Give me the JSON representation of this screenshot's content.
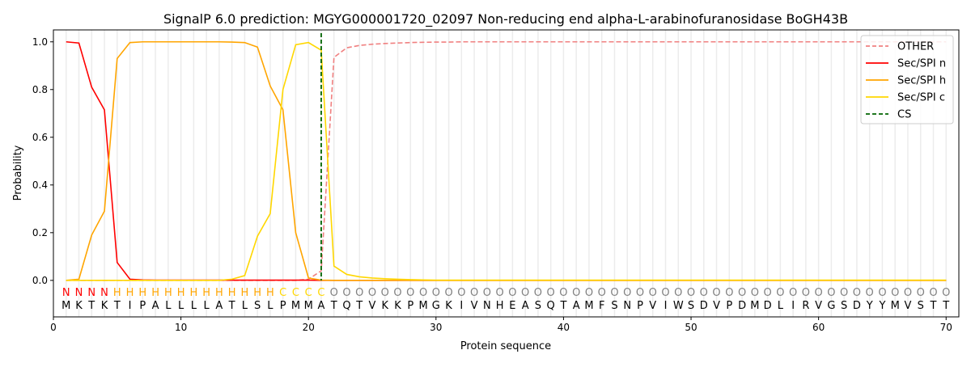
{
  "chart_data": {
    "type": "line",
    "title": "SignalP 6.0 prediction: MGYG000001720_02097 Non-reducing end alpha-L-arabinofuranosidase BoGH43B",
    "xlabel": "Protein sequence",
    "ylabel": "Probability",
    "xlim": [
      0,
      71
    ],
    "ylim": [
      -0.153,
      1.05
    ],
    "xticks": [
      0,
      10,
      20,
      30,
      40,
      50,
      60,
      70
    ],
    "yticks": [
      "0.0",
      "0.2",
      "0.4",
      "0.6",
      "0.8",
      "1.0"
    ],
    "grid": "vertical lines at each residue",
    "legend_position": "top-right",
    "sequence": [
      "M",
      "K",
      "T",
      "K",
      "T",
      "I",
      "P",
      "A",
      "L",
      "L",
      "L",
      "L",
      "A",
      "T",
      "L",
      "S",
      "L",
      "P",
      "M",
      "M",
      "A",
      "T",
      "Q",
      "T",
      "V",
      "K",
      "K",
      "P",
      "M",
      "G",
      "K",
      "I",
      "V",
      "N",
      "H",
      "E",
      "A",
      "S",
      "Q",
      "T",
      "A",
      "M",
      "F",
      "S",
      "N",
      "P",
      "V",
      "I",
      "W",
      "S",
      "D",
      "V",
      "P",
      "D",
      "M",
      "D",
      "L",
      "I",
      "R",
      "V",
      "G",
      "S",
      "D",
      "Y",
      "Y",
      "M",
      "V",
      "S",
      "T",
      "T"
    ],
    "labels": [
      "N",
      "N",
      "N",
      "N",
      "H",
      "H",
      "H",
      "H",
      "H",
      "H",
      "H",
      "H",
      "H",
      "H",
      "H",
      "H",
      "H",
      "C",
      "C",
      "C",
      "C",
      "O",
      "O",
      "O",
      "O",
      "O",
      "O",
      "O",
      "O",
      "O",
      "O",
      "O",
      "O",
      "O",
      "O",
      "O",
      "O",
      "O",
      "O",
      "O",
      "O",
      "O",
      "O",
      "O",
      "O",
      "O",
      "O",
      "O",
      "O",
      "O",
      "O",
      "O",
      "O",
      "O",
      "O",
      "O",
      "O",
      "O",
      "O",
      "O",
      "O",
      "O",
      "O",
      "O",
      "O",
      "O",
      "O",
      "O",
      "O",
      "O"
    ],
    "label_colors": {
      "N": "#ff0000",
      "H": "#ffa500",
      "C": "#ffd700",
      "O": "#808080"
    },
    "cs_position": 21,
    "cs_name": "CS",
    "cs_color": "#006400",
    "series": [
      {
        "name": "OTHER",
        "color": "#f08080",
        "dash": true,
        "values": [
          0,
          0,
          0,
          0,
          0,
          0,
          0,
          0,
          0,
          0,
          0,
          0,
          0,
          0,
          0,
          0,
          0,
          0,
          0,
          0.005,
          0.04,
          0.935,
          0.975,
          0.985,
          0.99,
          0.993,
          0.995,
          0.997,
          0.998,
          0.999,
          0.999,
          1,
          1,
          1,
          1,
          1,
          1,
          1,
          1,
          1,
          1,
          1,
          1,
          1,
          1,
          1,
          1,
          1,
          1,
          1,
          1,
          1,
          1,
          1,
          1,
          1,
          1,
          1,
          1,
          1,
          1,
          1,
          1,
          1,
          1,
          1,
          1,
          1,
          1,
          1
        ]
      },
      {
        "name": "Sec/SPI n",
        "color": "#ff0000",
        "dash": false,
        "values": [
          1.0,
          0.995,
          0.81,
          0.715,
          0.075,
          0.005,
          0.002,
          0.001,
          0.001,
          0.001,
          0.001,
          0.001,
          0.001,
          0.001,
          0.001,
          0.001,
          0.001,
          0.001,
          0.001,
          0.001,
          0,
          0,
          0,
          0,
          0,
          0,
          0,
          0,
          0,
          0,
          0,
          0,
          0,
          0,
          0,
          0,
          0,
          0,
          0,
          0,
          0,
          0,
          0,
          0,
          0,
          0,
          0,
          0,
          0,
          0,
          0,
          0,
          0,
          0,
          0,
          0,
          0,
          0,
          0,
          0,
          0,
          0,
          0,
          0,
          0,
          0,
          0,
          0,
          0,
          0
        ]
      },
      {
        "name": "Sec/SPI h",
        "color": "#ffa500",
        "dash": false,
        "values": [
          0,
          0.005,
          0.19,
          0.29,
          0.93,
          0.997,
          1.0,
          1.0,
          1.0,
          1.0,
          1.0,
          1.0,
          1.0,
          0.999,
          0.997,
          0.978,
          0.815,
          0.715,
          0.2,
          0.01,
          0.001,
          0,
          0,
          0,
          0,
          0,
          0,
          0,
          0,
          0,
          0,
          0,
          0,
          0,
          0,
          0,
          0,
          0,
          0,
          0,
          0,
          0,
          0,
          0,
          0,
          0,
          0,
          0,
          0,
          0,
          0,
          0,
          0,
          0,
          0,
          0,
          0,
          0,
          0,
          0,
          0,
          0,
          0,
          0,
          0,
          0,
          0,
          0,
          0,
          0
        ]
      },
      {
        "name": "Sec/SPI c",
        "color": "#ffd700",
        "dash": false,
        "values": [
          0,
          0,
          0,
          0,
          0,
          0,
          0,
          0,
          0,
          0,
          0,
          0,
          0,
          0.005,
          0.02,
          0.185,
          0.28,
          0.8,
          0.988,
          0.997,
          0.965,
          0.06,
          0.025,
          0.015,
          0.01,
          0.007,
          0.005,
          0.003,
          0.002,
          0.001,
          0.001,
          0.001,
          0.001,
          0.001,
          0.001,
          0.001,
          0.001,
          0.001,
          0.001,
          0.001,
          0.001,
          0.001,
          0.001,
          0.001,
          0.001,
          0.001,
          0.001,
          0.001,
          0.001,
          0.001,
          0.001,
          0.001,
          0.001,
          0.001,
          0.001,
          0.001,
          0.001,
          0.001,
          0.001,
          0.001,
          0.001,
          0.001,
          0.001,
          0.001,
          0.001,
          0.001,
          0.001,
          0.001,
          0.001,
          0.001
        ]
      }
    ]
  }
}
